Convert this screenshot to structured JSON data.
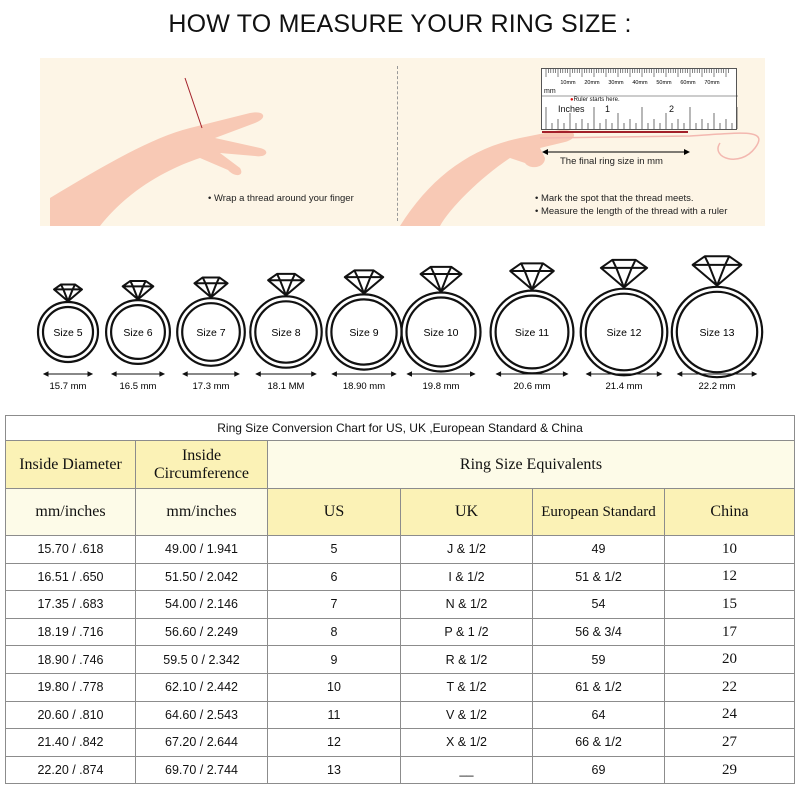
{
  "title": "HOW TO MEASURE YOUR RING SIZE :",
  "step_left": "Wrap a thread around your finger",
  "ruler": {
    "mm_ticks": [
      "10mm",
      "20mm",
      "30mm",
      "40mm",
      "50mm",
      "60mm",
      "70mm"
    ],
    "mm_label": "mm",
    "start_note": "Ruler starts here.",
    "inches_label": "Inches",
    "inch_ticks": [
      "1",
      "2"
    ],
    "final_label": "The final ring size in mm"
  },
  "steps_right": [
    "Mark the spot that the thread meets.",
    "Measure the length of the thread with a ruler"
  ],
  "rings": [
    {
      "label": "Size 5",
      "mm": "15.7 mm"
    },
    {
      "label": "Size 6",
      "mm": "16.5 mm"
    },
    {
      "label": "Size 7",
      "mm": "17.3 mm"
    },
    {
      "label": "Size 8",
      "mm": "18.1 MM"
    },
    {
      "label": "Size 9",
      "mm": "18.90 mm"
    },
    {
      "label": "Size 10",
      "mm": "19.8 mm"
    },
    {
      "label": "Size 11",
      "mm": "20.6 mm"
    },
    {
      "label": "Size 12",
      "mm": "21.4 mm"
    },
    {
      "label": "Size 13",
      "mm": "22.2 mm"
    }
  ],
  "table": {
    "caption": "Ring Size Conversion Chart for US, UK ,European Standard & China",
    "h_diameter": "Inside Diameter",
    "h_circ": "Inside Circumference",
    "h_equiv": "Ring Size Equivalents",
    "sub": [
      "mm/inches",
      "mm/inches",
      "US",
      "UK",
      "European Standard",
      "China"
    ],
    "rows": [
      [
        "15.70 / .618",
        "49.00 / 1.941",
        "5",
        "J & 1/2",
        "49",
        "10"
      ],
      [
        "16.51 / .650",
        "51.50 / 2.042",
        "6",
        "I & 1/2",
        "51 & 1/2",
        "12"
      ],
      [
        "17.35 / .683",
        "54.00 / 2.146",
        "7",
        "N & 1/2",
        "54",
        "15"
      ],
      [
        "18.19 / .716",
        "56.60 / 2.249",
        "8",
        "P & 1 /2",
        "56 & 3/4",
        "17"
      ],
      [
        "18.90 / .746",
        "59.5 0 / 2.342",
        "9",
        "R & 1/2",
        "59",
        "20"
      ],
      [
        "19.80 / .778",
        "62.10 / 2.442",
        "10",
        "T & 1/2",
        "61 & 1/2",
        "22"
      ],
      [
        "20.60 / .810",
        "64.60 / 2.543",
        "11",
        "V & 1/2",
        "64",
        "24"
      ],
      [
        "21.40 / .842",
        "67.20 / 2.644",
        "12",
        "X & 1/2",
        "66 & 1/2",
        "27"
      ],
      [
        "22.20 / .874",
        "69.70 / 2.744",
        "13",
        "__",
        "69",
        "29"
      ]
    ]
  },
  "colors": {
    "header_yellow": "#fbf2b6",
    "header_light": "#fdfbe8",
    "panel_bg": "#fdf5e6",
    "skin": "#f8c9b5",
    "thread": "#a3202a"
  }
}
